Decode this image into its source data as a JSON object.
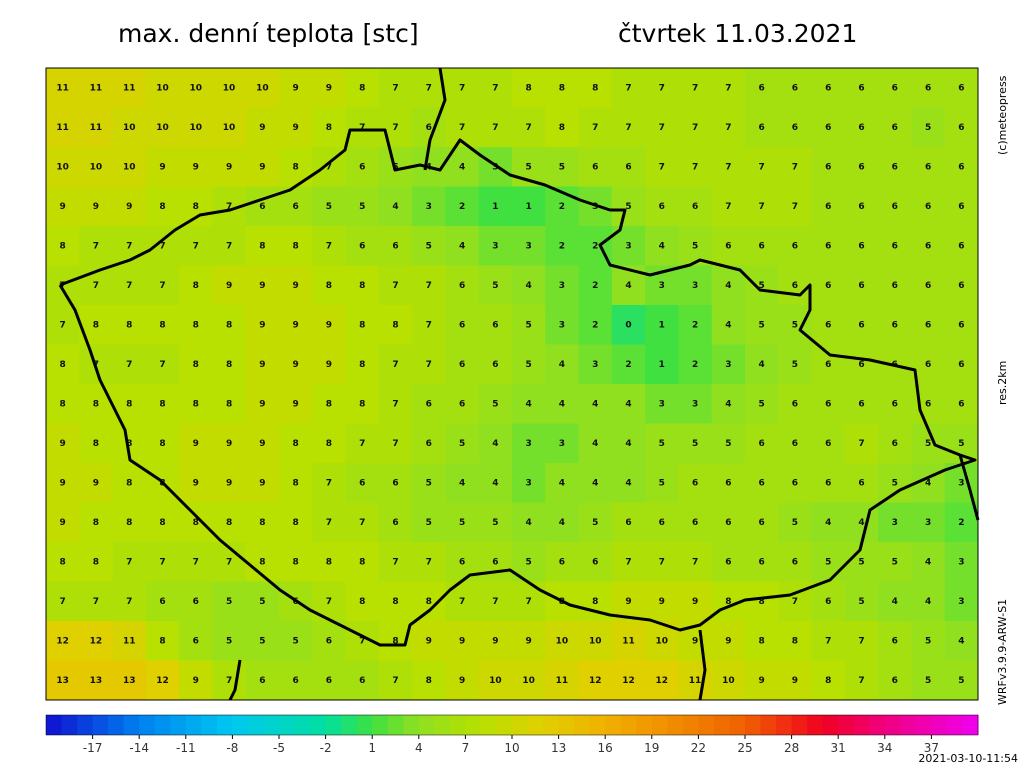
{
  "header": {
    "title": "max. denní teplota [stc]",
    "date": "čtvrtek 11.03.2021"
  },
  "side_labels": {
    "copyright": "(c)meteopress",
    "resolution": "res.2km",
    "model": "WRFv3.9.9-ARW-S1"
  },
  "footer": {
    "timestamp": "2021-03-10-11:54"
  },
  "colorbar": {
    "range": [
      -20,
      40
    ],
    "ticks": [
      -17,
      -14,
      -11,
      -8,
      -5,
      -2,
      1,
      4,
      7,
      10,
      13,
      16,
      19,
      22,
      25,
      28,
      31,
      34,
      37
    ],
    "color_stops": [
      [
        -20,
        "#1010d0"
      ],
      [
        -14,
        "#0080f0"
      ],
      [
        -8,
        "#00c8f0"
      ],
      [
        -2,
        "#00e0a0"
      ],
      [
        1,
        "#40e040"
      ],
      [
        4,
        "#90e020"
      ],
      [
        8,
        "#b8e000"
      ],
      [
        12,
        "#e0d000"
      ],
      [
        16,
        "#f0b000"
      ],
      [
        20,
        "#f09000"
      ],
      [
        25,
        "#f06000"
      ],
      [
        30,
        "#f00020"
      ],
      [
        34,
        "#f00080"
      ],
      [
        40,
        "#f000f0"
      ]
    ]
  },
  "grid": [
    [
      11,
      11,
      11,
      10,
      10,
      10,
      10,
      9,
      9,
      8,
      7,
      7,
      7,
      7,
      8,
      8,
      8,
      7,
      7,
      7,
      7,
      6,
      6,
      6,
      6,
      6,
      6,
      6
    ],
    [
      11,
      11,
      10,
      10,
      10,
      10,
      9,
      9,
      8,
      7,
      7,
      6,
      7,
      7,
      7,
      8,
      7,
      7,
      7,
      7,
      7,
      6,
      6,
      6,
      6,
      6,
      5,
      6
    ],
    [
      10,
      10,
      10,
      9,
      9,
      9,
      9,
      8,
      7,
      6,
      5,
      4,
      4,
      3,
      5,
      5,
      6,
      6,
      7,
      7,
      7,
      7,
      7,
      6,
      6,
      6,
      6,
      6
    ],
    [
      9,
      9,
      9,
      8,
      8,
      7,
      6,
      6,
      5,
      5,
      4,
      3,
      2,
      1,
      1,
      2,
      3,
      5,
      6,
      6,
      7,
      7,
      7,
      6,
      6,
      6,
      6,
      6
    ],
    [
      8,
      7,
      7,
      7,
      7,
      7,
      8,
      8,
      7,
      6,
      6,
      5,
      4,
      3,
      3,
      2,
      2,
      3,
      4,
      5,
      6,
      6,
      6,
      6,
      6,
      6,
      6,
      6
    ],
    [
      7,
      7,
      7,
      7,
      8,
      9,
      9,
      9,
      8,
      8,
      7,
      7,
      6,
      5,
      4,
      3,
      2,
      4,
      3,
      3,
      4,
      5,
      6,
      6,
      6,
      6,
      6,
      6
    ],
    [
      7,
      8,
      8,
      8,
      8,
      8,
      9,
      9,
      9,
      8,
      8,
      7,
      6,
      6,
      5,
      3,
      2,
      0,
      1,
      2,
      4,
      5,
      5,
      6,
      6,
      6,
      6,
      6
    ],
    [
      8,
      7,
      7,
      7,
      8,
      8,
      9,
      9,
      9,
      8,
      7,
      7,
      6,
      6,
      5,
      4,
      3,
      2,
      1,
      2,
      3,
      4,
      5,
      6,
      6,
      6,
      6,
      6
    ],
    [
      8,
      8,
      8,
      8,
      8,
      8,
      9,
      9,
      8,
      8,
      7,
      6,
      6,
      5,
      4,
      4,
      4,
      4,
      3,
      3,
      4,
      5,
      6,
      6,
      6,
      6,
      6,
      6
    ],
    [
      9,
      8,
      8,
      8,
      9,
      9,
      9,
      8,
      8,
      7,
      7,
      6,
      5,
      4,
      3,
      3,
      4,
      4,
      5,
      5,
      5,
      6,
      6,
      6,
      7,
      6,
      5,
      5
    ],
    [
      9,
      9,
      8,
      8,
      9,
      9,
      9,
      8,
      7,
      6,
      6,
      5,
      4,
      4,
      3,
      4,
      4,
      4,
      5,
      6,
      6,
      6,
      6,
      6,
      6,
      5,
      4,
      3
    ],
    [
      9,
      8,
      8,
      8,
      8,
      8,
      8,
      8,
      7,
      7,
      6,
      5,
      5,
      5,
      4,
      4,
      5,
      6,
      6,
      6,
      6,
      6,
      5,
      4,
      4,
      3,
      3,
      2
    ],
    [
      8,
      8,
      7,
      7,
      7,
      7,
      8,
      8,
      8,
      8,
      7,
      7,
      6,
      6,
      5,
      6,
      6,
      7,
      7,
      7,
      6,
      6,
      6,
      5,
      5,
      5,
      4,
      3
    ],
    [
      7,
      7,
      7,
      6,
      6,
      5,
      5,
      6,
      7,
      8,
      8,
      8,
      7,
      7,
      7,
      8,
      8,
      9,
      9,
      9,
      8,
      8,
      7,
      6,
      5,
      4,
      4,
      3
    ],
    [
      12,
      12,
      11,
      8,
      6,
      5,
      5,
      5,
      6,
      7,
      8,
      9,
      9,
      9,
      9,
      10,
      10,
      11,
      10,
      9,
      9,
      8,
      8,
      7,
      7,
      6,
      5,
      4
    ],
    [
      13,
      13,
      13,
      12,
      9,
      7,
      6,
      6,
      6,
      6,
      7,
      8,
      9,
      10,
      10,
      11,
      12,
      12,
      12,
      11,
      10,
      9,
      9,
      8,
      7,
      6,
      5,
      5
    ]
  ]
}
